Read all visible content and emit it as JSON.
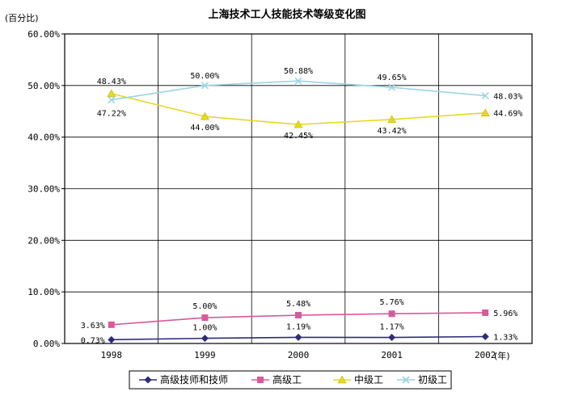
{
  "chart_data": {
    "type": "line",
    "title": "上海技术工人技能技术等级变化图",
    "ylabel": "(百分比)",
    "xlabel": "(年)",
    "categories": [
      "1998",
      "1999",
      "2000",
      "2001",
      "2002"
    ],
    "ylim": [
      0,
      60
    ],
    "yticks": [
      "0.00%",
      "10.00%",
      "20.00%",
      "30.00%",
      "40.00%",
      "50.00%",
      "60.00%"
    ],
    "grid": true,
    "legend_position": "bottom",
    "series": [
      {
        "name": "高级技师和技师",
        "marker": "diamond",
        "color": "#2e2a7a",
        "values": [
          0.73,
          1.0,
          1.19,
          1.17,
          1.33
        ],
        "labels": [
          "0.73%",
          "1.00%",
          "1.19%",
          "1.17%",
          "1.33%"
        ]
      },
      {
        "name": "高级工",
        "marker": "square",
        "color": "#d9599a",
        "values": [
          3.63,
          5.0,
          5.48,
          5.76,
          5.96
        ],
        "labels": [
          "3.63%",
          "5.00%",
          "5.48%",
          "5.76%",
          "5.96%"
        ]
      },
      {
        "name": "中级工",
        "marker": "triangle",
        "color": "#e8d820",
        "values": [
          48.43,
          44.0,
          42.45,
          43.42,
          44.69
        ],
        "labels": [
          "48.43%",
          "44.00%",
          "42.45%",
          "43.42%",
          "44.69%"
        ]
      },
      {
        "name": "初级工",
        "marker": "x",
        "color": "#9ad4e4",
        "values": [
          47.22,
          50.0,
          50.88,
          49.65,
          48.03
        ],
        "labels": [
          "47.22%",
          "50.00%",
          "50.88%",
          "49.65%",
          "48.03%"
        ]
      }
    ]
  }
}
